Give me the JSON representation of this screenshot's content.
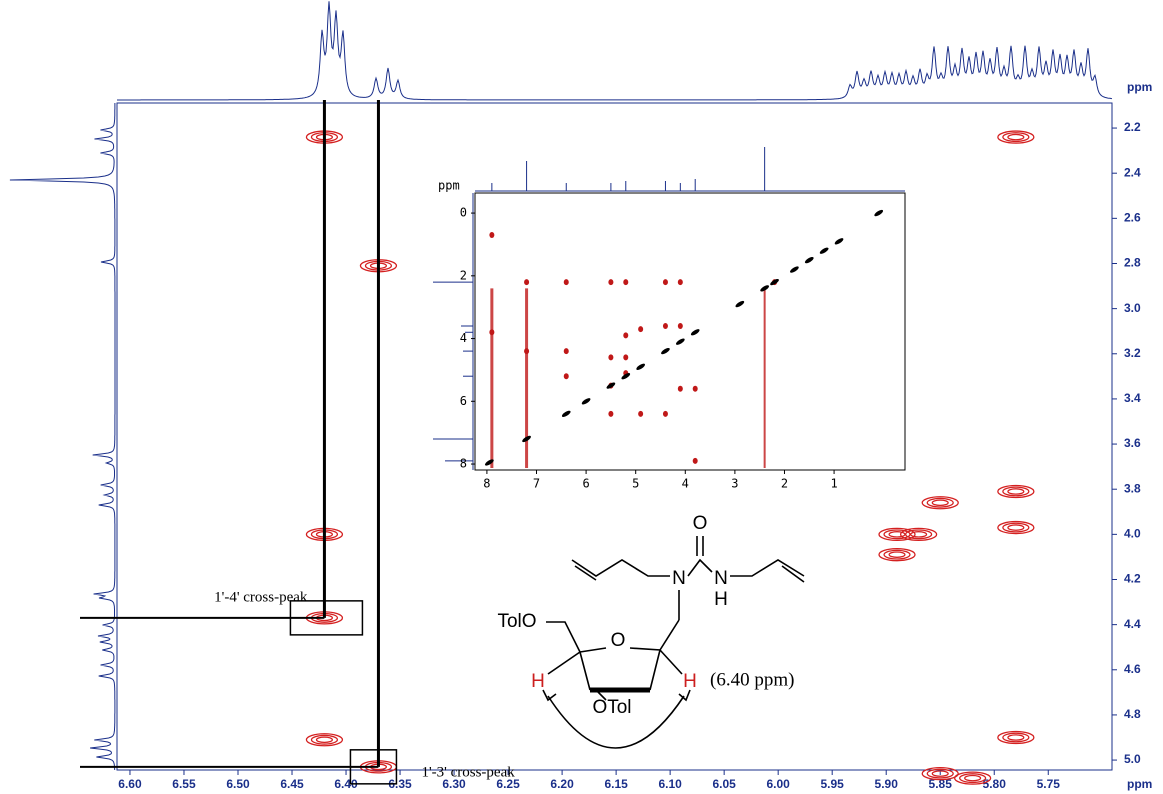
{
  "chart_data": {
    "type": "nmr-2d",
    "xlabel": "ppm",
    "ylabel": "ppm",
    "xlim": [
      6.612,
      5.691
    ],
    "ylim": [
      2.089,
      5.044
    ],
    "xticks": [
      {
        "value": 6.6,
        "label": "6.60"
      },
      {
        "value": 6.55,
        "label": "6.55"
      },
      {
        "value": 6.5,
        "label": "6.50"
      },
      {
        "value": 6.45,
        "label": "6.45"
      },
      {
        "value": 6.4,
        "label": "6.40"
      },
      {
        "value": 6.35,
        "label": "6.35"
      },
      {
        "value": 6.3,
        "label": "6.30"
      },
      {
        "value": 6.25,
        "label": "6.25"
      },
      {
        "value": 6.2,
        "label": "6.20"
      },
      {
        "value": 6.15,
        "label": "6.15"
      },
      {
        "value": 6.1,
        "label": "6.10"
      },
      {
        "value": 6.05,
        "label": "6.05"
      },
      {
        "value": 6,
        "label": "6.00"
      },
      {
        "value": 5.95,
        "label": "5.95"
      },
      {
        "value": 5.9,
        "label": "5.90"
      },
      {
        "value": 5.85,
        "label": "5.85"
      },
      {
        "value": 5.8,
        "label": "5.80"
      },
      {
        "value": 5.75,
        "label": "5.75"
      }
    ],
    "yticks": [
      2.2,
      2.4,
      2.6,
      2.8,
      {
        "value": 3,
        "label": "3.0"
      },
      3.2,
      3.4,
      3.6,
      3.8,
      {
        "value": 4,
        "label": "4.0"
      },
      4.2,
      4.4,
      4.6,
      4.8,
      {
        "value": 5,
        "label": "5.0"
      }
    ],
    "peaks": {
      "color": "#d42020",
      "x": [
        6.42,
        6.37,
        6.42,
        6.37,
        6.42,
        6.42,
        5.78,
        5.85,
        5.78,
        5.78,
        5.89,
        5.87,
        5.89,
        5.85,
        5.82,
        5.78
      ],
      "y": [
        2.24,
        2.81,
        4.37,
        5.03,
        4.91,
        4.0,
        2.24,
        3.86,
        3.81,
        3.97,
        4.0,
        4.0,
        4.09,
        5.06,
        5.08,
        4.9
      ]
    },
    "annotations": [
      "1'-4' cross-peak",
      "1'-3' cross-peak"
    ],
    "inset": {
      "xlabel": "ppm",
      "xlim": [
        8.24,
        -0.43
      ],
      "ylim": [
        -0.64,
        8.19
      ],
      "xticks": [
        8,
        7,
        6,
        5,
        4,
        3,
        2,
        1
      ],
      "yticks": [
        0,
        2,
        4,
        6,
        8
      ],
      "cross_peaks": {
        "color": "#c01818",
        "x": [
          7.9,
          7.2,
          6.4,
          5.5,
          5.2,
          4.4,
          4.1,
          2.2,
          6.4,
          5.2,
          4.9,
          4.4,
          4.1,
          5.5,
          5.2,
          4.1,
          3.8,
          5.5,
          4.9,
          4.4,
          7.2,
          5.2,
          7.9,
          3.8,
          6.4,
          5.5
        ],
        "y": [
          0.7,
          2.2,
          2.2,
          2.2,
          2.2,
          2.2,
          2.2,
          2.2,
          4.4,
          3.9,
          3.7,
          3.6,
          3.6,
          5.5,
          4.6,
          5.6,
          5.6,
          6.4,
          6.4,
          6.4,
          4.4,
          5.1,
          3.8,
          7.9,
          5.2,
          4.6
        ]
      },
      "diagonal": {
        "color": "#000000",
        "x": [
          7.95,
          7.2,
          6.4,
          6.0,
          5.5,
          5.2,
          4.9,
          4.4,
          4.1,
          3.8,
          2.9,
          2.4,
          2.2,
          1.8,
          1.5,
          1.2,
          0.9,
          0.1
        ],
        "y": [
          7.95,
          7.2,
          6.4,
          6.0,
          5.5,
          5.2,
          4.9,
          4.4,
          4.1,
          3.8,
          2.9,
          2.4,
          2.2,
          1.8,
          1.5,
          1.2,
          0.9,
          0.0
        ]
      }
    }
  },
  "structure": {
    "labels": [
      "O",
      "N",
      "N",
      "H",
      "TolO",
      "O",
      "H",
      "H",
      "OTol"
    ],
    "note": "(6.40 ppm)"
  }
}
